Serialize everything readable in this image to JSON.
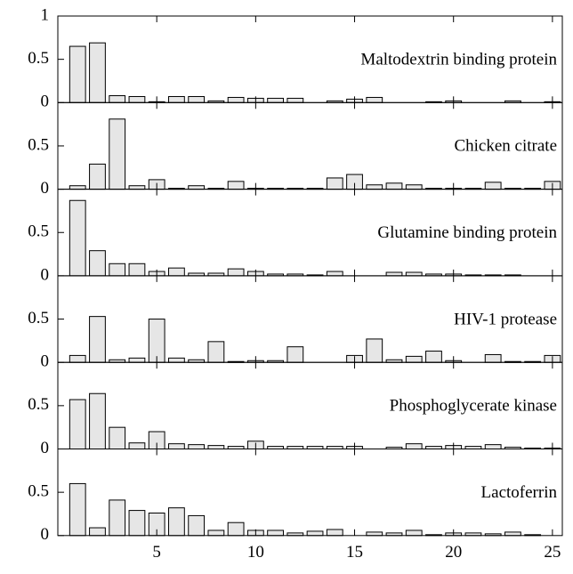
{
  "chart_data": [
    {
      "type": "bar",
      "title": "Maltodextrin binding protein",
      "color": "#e6e6e6",
      "x": [
        1,
        2,
        3,
        4,
        5,
        6,
        7,
        8,
        9,
        10,
        11,
        12,
        13,
        14,
        15,
        16,
        17,
        18,
        19,
        20,
        21,
        22,
        23,
        24,
        25
      ],
      "values": [
        0.65,
        0.69,
        0.08,
        0.07,
        0.01,
        0.07,
        0.07,
        0.02,
        0.06,
        0.05,
        0.05,
        0.05,
        0,
        0.02,
        0.04,
        0.06,
        0,
        0,
        0.01,
        0.02,
        0,
        0,
        0.02,
        0,
        0.01
      ],
      "xlim": [
        0,
        25.5
      ],
      "ylim": [
        0,
        1
      ],
      "yticks": [
        0,
        0.5,
        1
      ]
    },
    {
      "type": "bar",
      "title": "Chicken citrate",
      "color": "#e6e6e6",
      "x": [
        1,
        2,
        3,
        4,
        5,
        6,
        7,
        8,
        9,
        10,
        11,
        12,
        13,
        14,
        15,
        16,
        17,
        18,
        19,
        20,
        21,
        22,
        23,
        24,
        25
      ],
      "values": [
        0.04,
        0.29,
        0.81,
        0.04,
        0.11,
        0.01,
        0.04,
        0.01,
        0.09,
        0.01,
        0.01,
        0.01,
        0.01,
        0.13,
        0.17,
        0.05,
        0.07,
        0.05,
        0.01,
        0.01,
        0.01,
        0.08,
        0.01,
        0.01,
        0.09
      ],
      "xlim": [
        0,
        25.5
      ],
      "ylim": [
        0,
        1
      ],
      "yticks": [
        0,
        0.5
      ]
    },
    {
      "type": "bar",
      "title": "Glutamine binding protein",
      "color": "#e6e6e6",
      "x": [
        1,
        2,
        3,
        4,
        5,
        6,
        7,
        8,
        9,
        10,
        11,
        12,
        13,
        14,
        15,
        16,
        17,
        18,
        19,
        20,
        21,
        22,
        23,
        24,
        25
      ],
      "values": [
        0.87,
        0.29,
        0.14,
        0.14,
        0.05,
        0.09,
        0.03,
        0.03,
        0.08,
        0.05,
        0.02,
        0.02,
        0.01,
        0.05,
        0,
        0,
        0.04,
        0.04,
        0.02,
        0.02,
        0.01,
        0.01,
        0.01,
        0,
        0
      ],
      "xlim": [
        0,
        25.5
      ],
      "ylim": [
        0,
        1
      ],
      "yticks": [
        0,
        0.5
      ]
    },
    {
      "type": "bar",
      "title": "HIV-1 protease",
      "color": "#e6e6e6",
      "x": [
        1,
        2,
        3,
        4,
        5,
        6,
        7,
        8,
        9,
        10,
        11,
        12,
        13,
        14,
        15,
        16,
        17,
        18,
        19,
        20,
        21,
        22,
        23,
        24,
        25
      ],
      "values": [
        0.08,
        0.53,
        0.03,
        0.05,
        0.5,
        0.05,
        0.03,
        0.24,
        0.01,
        0.02,
        0.02,
        0.18,
        0,
        0,
        0.08,
        0.27,
        0.03,
        0.07,
        0.13,
        0.02,
        0,
        0.09,
        0.01,
        0.01,
        0.08
      ],
      "xlim": [
        0,
        25.5
      ],
      "ylim": [
        0,
        1
      ],
      "yticks": [
        0,
        0.5
      ]
    },
    {
      "type": "bar",
      "title": "Phosphoglycerate kinase",
      "color": "#e6e6e6",
      "x": [
        1,
        2,
        3,
        4,
        5,
        6,
        7,
        8,
        9,
        10,
        11,
        12,
        13,
        14,
        15,
        16,
        17,
        18,
        19,
        20,
        21,
        22,
        23,
        24,
        25
      ],
      "values": [
        0.57,
        0.64,
        0.25,
        0.07,
        0.2,
        0.06,
        0.05,
        0.04,
        0.03,
        0.09,
        0.03,
        0.03,
        0.03,
        0.03,
        0.03,
        0,
        0.02,
        0.06,
        0.03,
        0.04,
        0.03,
        0.05,
        0.02,
        0.01,
        0.01
      ],
      "xlim": [
        0,
        25.5
      ],
      "ylim": [
        0,
        1
      ],
      "yticks": [
        0,
        0.5
      ]
    },
    {
      "type": "bar",
      "title": "Lactoferrin",
      "color": "#e6e6e6",
      "x": [
        1,
        2,
        3,
        4,
        5,
        6,
        7,
        8,
        9,
        10,
        11,
        12,
        13,
        14,
        15,
        16,
        17,
        18,
        19,
        20,
        21,
        22,
        23,
        24,
        25
      ],
      "values": [
        0.6,
        0.09,
        0.41,
        0.29,
        0.26,
        0.32,
        0.23,
        0.06,
        0.15,
        0.06,
        0.06,
        0.03,
        0.05,
        0.07,
        0,
        0.04,
        0.03,
        0.06,
        0.01,
        0.03,
        0.03,
        0.02,
        0.04,
        0.01,
        0
      ],
      "xlim": [
        0,
        25.5
      ],
      "ylim": [
        0,
        1
      ],
      "yticks": [
        0,
        0.5
      ],
      "xticks": [
        5,
        10,
        15,
        20,
        25
      ]
    }
  ]
}
